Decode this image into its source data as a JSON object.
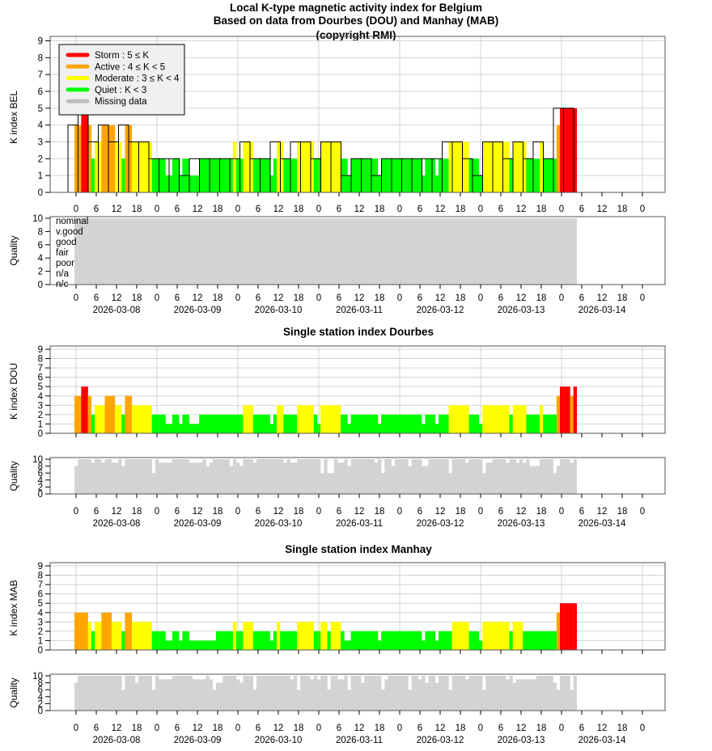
{
  "titles": {
    "line1": "Local K-type magnetic activity index for Belgium",
    "line2": "Based on data from Dourbes (DOU) and Manhay (MAB)",
    "line3": "(copyright RMI)",
    "dou": "Single station index Dourbes",
    "mab": "Single station index Manhay"
  },
  "legend": [
    {
      "label": "Storm : 5 ≤ K",
      "color": "#ff0000"
    },
    {
      "label": "Active : 4 ≤ K < 5",
      "color": "#ffa500"
    },
    {
      "label": "Moderate : 3 ≤ K < 4",
      "color": "#ffff00"
    },
    {
      "label": "Quiet : K < 3",
      "color": "#00ff00"
    },
    {
      "label": "Missing data",
      "color": "#bebebe"
    }
  ],
  "colors": {
    "storm": "#ff0000",
    "active": "#ffa500",
    "moderate": "#ffff00",
    "quiet": "#00ff00",
    "missing": "#d3d3d3",
    "grid": "#d3d3d3"
  },
  "quality_labels": [
    "nominal",
    "v.good",
    "good",
    "fair",
    "poor",
    "n/a",
    "n/c"
  ],
  "chart_data": [
    {
      "type": "bar",
      "id": "bel",
      "ylabel": "K index BEL",
      "ylim": [
        0,
        9
      ],
      "yticks": [
        "0",
        "1",
        "2",
        "3",
        "4",
        "5",
        "6",
        "7",
        "8",
        "9"
      ],
      "xticks": [
        "0",
        "6",
        "12",
        "18",
        "0",
        "6",
        "12",
        "18",
        "0",
        "6",
        "12",
        "18",
        "0",
        "6",
        "12",
        "18",
        "0",
        "6",
        "12",
        "18",
        "0",
        "6",
        "12",
        "18",
        "0",
        "6",
        "12",
        "18",
        "0"
      ],
      "dates": [
        "2026-03-08",
        "2026-03-09",
        "2026-03-10",
        "2026-03-11",
        "2026-03-12",
        "2026-03-13",
        "2026-03-14"
      ],
      "k_3hourly": [
        4,
        5,
        3,
        4,
        3,
        4,
        3,
        3,
        2,
        2,
        2,
        1,
        2,
        2,
        2,
        2,
        2,
        3,
        2,
        2,
        3,
        2,
        3,
        3,
        2,
        3,
        3,
        1,
        2,
        2,
        1,
        2,
        2,
        2,
        2,
        2,
        2,
        3,
        3,
        2,
        1,
        3,
        3,
        2,
        3,
        2,
        3,
        2,
        5,
        5
      ],
      "k_hourly": [
        4,
        4,
        5,
        5,
        4,
        2,
        3,
        3,
        4,
        4,
        4,
        4,
        3,
        3,
        2,
        4,
        4,
        3,
        3,
        3,
        3,
        3,
        3,
        2,
        2,
        2,
        2,
        1,
        1,
        2,
        2,
        1,
        2,
        2,
        1,
        1,
        1,
        2,
        2,
        2,
        2,
        2,
        2,
        2,
        2,
        2,
        2,
        3,
        2,
        2,
        3,
        3,
        3,
        2,
        2,
        2,
        2,
        2,
        1,
        2,
        3,
        3,
        2,
        2,
        2,
        2,
        3,
        3,
        3,
        3,
        3,
        2,
        2,
        3,
        3,
        3,
        3,
        3,
        3,
        2,
        2,
        1,
        2,
        2,
        2,
        2,
        2,
        2,
        2,
        2,
        1,
        2,
        2,
        2,
        2,
        2,
        2,
        2,
        2,
        2,
        2,
        2,
        2,
        1,
        2,
        2,
        2,
        1,
        2,
        2,
        2,
        3,
        3,
        3,
        3,
        3,
        3,
        2,
        2,
        2,
        1,
        3,
        3,
        3,
        3,
        3,
        3,
        3,
        3,
        2,
        3,
        3,
        3,
        3,
        2,
        2,
        2,
        2,
        3,
        2,
        2,
        2,
        2,
        4,
        5,
        5,
        5,
        5,
        5
      ],
      "quality": {
        "ylabel": "Quality",
        "ylim": [
          0,
          10
        ],
        "yticks": [
          "0",
          "2",
          "4",
          "6",
          "8",
          "10"
        ],
        "default": 10,
        "hours": 149,
        "exceptions": {}
      }
    },
    {
      "type": "bar",
      "id": "dou",
      "ylabel": "K index DOU",
      "ylim": [
        0,
        9
      ],
      "yticks": [
        "0",
        "1",
        "2",
        "3",
        "4",
        "5",
        "6",
        "7",
        "8",
        "9"
      ],
      "xticks": [
        "0",
        "6",
        "12",
        "18",
        "0",
        "6",
        "12",
        "18",
        "0",
        "6",
        "12",
        "18",
        "0",
        "6",
        "12",
        "18",
        "0",
        "6",
        "12",
        "18",
        "0",
        "6",
        "12",
        "18",
        "0",
        "6",
        "12",
        "18",
        "0"
      ],
      "dates": [
        "2026-03-08",
        "2026-03-09",
        "2026-03-10",
        "2026-03-11",
        "2026-03-12",
        "2026-03-13",
        "2026-03-14"
      ],
      "k_hourly": [
        4,
        4,
        5,
        5,
        4,
        2,
        3,
        3,
        3,
        4,
        4,
        4,
        3,
        3,
        2,
        4,
        4,
        3,
        3,
        3,
        3,
        3,
        3,
        2,
        2,
        2,
        2,
        1,
        1,
        2,
        2,
        1,
        2,
        2,
        1,
        1,
        1,
        2,
        2,
        2,
        2,
        2,
        2,
        2,
        2,
        2,
        2,
        2,
        2,
        2,
        3,
        3,
        3,
        2,
        2,
        2,
        2,
        2,
        1,
        2,
        3,
        3,
        2,
        2,
        2,
        2,
        3,
        3,
        3,
        3,
        3,
        2,
        1,
        3,
        3,
        3,
        3,
        3,
        3,
        2,
        2,
        1,
        2,
        2,
        2,
        2,
        2,
        2,
        2,
        2,
        1,
        2,
        2,
        2,
        2,
        2,
        2,
        2,
        2,
        2,
        2,
        2,
        2,
        1,
        2,
        2,
        2,
        1,
        2,
        2,
        2,
        3,
        3,
        3,
        3,
        3,
        3,
        2,
        2,
        2,
        1,
        3,
        3,
        3,
        3,
        3,
        3,
        3,
        3,
        2,
        3,
        3,
        3,
        3,
        2,
        2,
        2,
        2,
        3,
        2,
        2,
        2,
        2,
        4,
        5,
        5,
        5,
        4,
        5
      ],
      "quality": {
        "ylabel": "Quality",
        "ylim": [
          0,
          10
        ],
        "yticks": [
          "0",
          "2",
          "4",
          "6",
          "8",
          "10"
        ],
        "default": 10,
        "hours": 149,
        "exceptions": {
          "0": 8,
          "5": 9,
          "8": 9,
          "11": 9,
          "12": 9,
          "14": 8,
          "23": 6,
          "25": 9,
          "26": 9,
          "27": 9,
          "28": 9,
          "34": 9,
          "35": 9,
          "36": 9,
          "37": 9,
          "39": 8,
          "40": 9,
          "46": 8,
          "48": 9,
          "49": 8,
          "53": 9,
          "62": 9,
          "64": 9,
          "65": 9,
          "73": 6,
          "75": 6,
          "76": 6,
          "78": 9,
          "79": 9,
          "81": 8,
          "89": 9,
          "91": 6,
          "94": 8,
          "99": 8,
          "103": 8,
          "104": 8,
          "111": 6,
          "116": 9,
          "121": 6,
          "122": 9,
          "123": 9,
          "128": 9,
          "131": 9,
          "133": 9,
          "135": 8,
          "136": 8,
          "137": 8,
          "142": 6,
          "143": 8,
          "147": 9
        }
      }
    },
    {
      "type": "bar",
      "id": "mab",
      "ylabel": "K index MAB",
      "ylim": [
        0,
        9
      ],
      "yticks": [
        "0",
        "1",
        "2",
        "3",
        "4",
        "5",
        "6",
        "7",
        "8",
        "9"
      ],
      "xticks": [
        "0",
        "6",
        "12",
        "18",
        "0",
        "6",
        "12",
        "18",
        "0",
        "6",
        "12",
        "18",
        "0",
        "6",
        "12",
        "18",
        "0",
        "6",
        "12",
        "18",
        "0",
        "6",
        "12",
        "18",
        "0",
        "6",
        "12",
        "18",
        "0"
      ],
      "dates": [
        "2026-03-08",
        "2026-03-09",
        "2026-03-10",
        "2026-03-11",
        "2026-03-12",
        "2026-03-13",
        "2026-03-14"
      ],
      "k_hourly": [
        4,
        4,
        4,
        4,
        3,
        2,
        3,
        3,
        4,
        4,
        4,
        3,
        3,
        3,
        2,
        4,
        4,
        3,
        3,
        3,
        3,
        3,
        3,
        2,
        2,
        2,
        2,
        1,
        1,
        2,
        2,
        1,
        2,
        2,
        1,
        1,
        1,
        1,
        1,
        1,
        1,
        1,
        2,
        2,
        2,
        2,
        2,
        3,
        2,
        2,
        3,
        3,
        3,
        2,
        2,
        2,
        2,
        2,
        1,
        2,
        3,
        2,
        2,
        2,
        2,
        2,
        3,
        3,
        3,
        3,
        3,
        2,
        2,
        3,
        3,
        2,
        3,
        3,
        3,
        2,
        1,
        1,
        2,
        2,
        2,
        2,
        2,
        2,
        2,
        2,
        1,
        2,
        2,
        2,
        2,
        2,
        2,
        2,
        2,
        2,
        2,
        2,
        2,
        1,
        2,
        2,
        2,
        1,
        2,
        2,
        2,
        2,
        3,
        3,
        3,
        3,
        3,
        2,
        2,
        2,
        1,
        3,
        3,
        3,
        3,
        3,
        3,
        3,
        3,
        2,
        3,
        3,
        3,
        2,
        2,
        2,
        2,
        2,
        2,
        2,
        2,
        2,
        2,
        4,
        5,
        5,
        5,
        5,
        5
      ],
      "quality": {
        "ylabel": "Quality",
        "ylim": [
          0,
          10
        ],
        "yticks": [
          "0",
          "2",
          "4",
          "6",
          "8",
          "10"
        ],
        "default": 10,
        "hours": 149,
        "exceptions": {
          "0": 8,
          "14": 6,
          "18": 8,
          "23": 6,
          "25": 9,
          "26": 9,
          "27": 9,
          "28": 9,
          "35": 9,
          "36": 9,
          "37": 9,
          "38": 9,
          "40": 9,
          "41": 6,
          "42": 8,
          "43": 8,
          "48": 9,
          "49": 8,
          "53": 6,
          "64": 9,
          "66": 6,
          "70": 9,
          "72": 9,
          "75": 6,
          "78": 9,
          "79": 9,
          "81": 6,
          "85": 8,
          "91": 6,
          "92": 9,
          "99": 6,
          "102": 9,
          "104": 8,
          "107": 8,
          "111": 6,
          "116": 9,
          "121": 6,
          "128": 9,
          "130": 8,
          "131": 9,
          "132": 9,
          "133": 9,
          "134": 9,
          "135": 9,
          "136": 9,
          "142": 8,
          "143": 6,
          "147": 6
        }
      }
    }
  ]
}
